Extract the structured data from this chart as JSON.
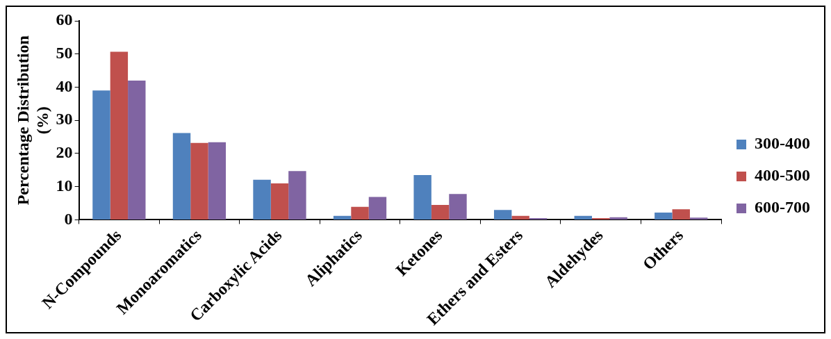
{
  "chart_data": {
    "type": "bar",
    "ylabel": "Percentage Distribution\n(%)",
    "categories": [
      "N-Compounds",
      "Monoaromatics",
      "Carboxylic Acids",
      "Aliphatics",
      "Ketones",
      "Ethers and Esters",
      "Aldehydes",
      "Others"
    ],
    "series": [
      {
        "name": "300-400",
        "color": "#4f81bd",
        "values": [
          39,
          26.2,
          12.1,
          1.2,
          13.5,
          3,
          1.2,
          2.2
        ]
      },
      {
        "name": "400-500",
        "color": "#c0504d",
        "values": [
          50.7,
          23.2,
          11,
          3.9,
          4.5,
          1.2,
          0.5,
          3.2
        ]
      },
      {
        "name": "600-700",
        "color": "#8064a2",
        "values": [
          42,
          23.4,
          14.7,
          6.9,
          7.8,
          0.5,
          0.8,
          0.7
        ]
      }
    ],
    "ylim": [
      0,
      60
    ],
    "yticks": [
      0,
      10,
      20,
      30,
      40,
      50,
      60
    ],
    "grid": false,
    "legend": "right"
  }
}
